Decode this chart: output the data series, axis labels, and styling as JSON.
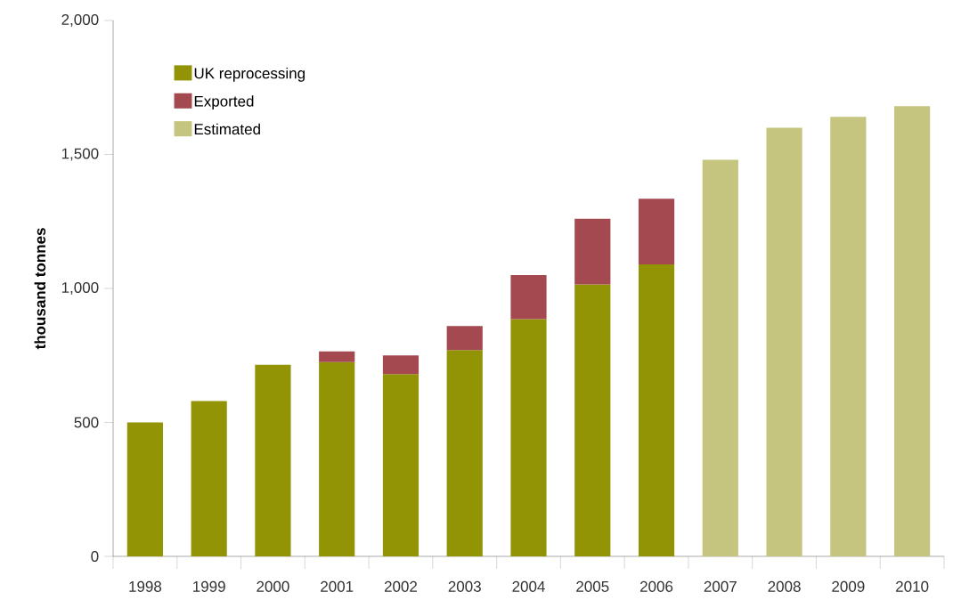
{
  "chart_data": {
    "type": "bar",
    "ylabel": "thousand tonnes",
    "stacked": true,
    "legend": "top left",
    "categories": [
      "1998",
      "1999",
      "2000",
      "2001",
      "2002",
      "2003",
      "2004",
      "2005",
      "2006",
      "2007",
      "2008",
      "2009",
      "2010"
    ],
    "ylim": [
      0,
      2000
    ],
    "yticks": [
      0,
      500,
      {
        "value": 1000,
        "label": "1,000"
      },
      {
        "value": 1500,
        "label": "1,500"
      },
      {
        "value": 2000,
        "label": "2,000"
      }
    ],
    "series": [
      {
        "name": "UK reprocessing",
        "color": "#929406",
        "values": [
          500,
          580,
          715,
          725,
          680,
          770,
          885,
          1015,
          1090,
          null,
          null,
          null,
          null
        ]
      },
      {
        "name": "Exported",
        "color": "#a4494f",
        "values": [
          null,
          null,
          null,
          40,
          70,
          90,
          165,
          245,
          245,
          null,
          null,
          null,
          null
        ]
      },
      {
        "name": "Estimated",
        "color": "#c6c57f",
        "values": [
          null,
          null,
          null,
          null,
          null,
          null,
          null,
          null,
          null,
          1480,
          1600,
          1640,
          1680
        ]
      }
    ]
  }
}
